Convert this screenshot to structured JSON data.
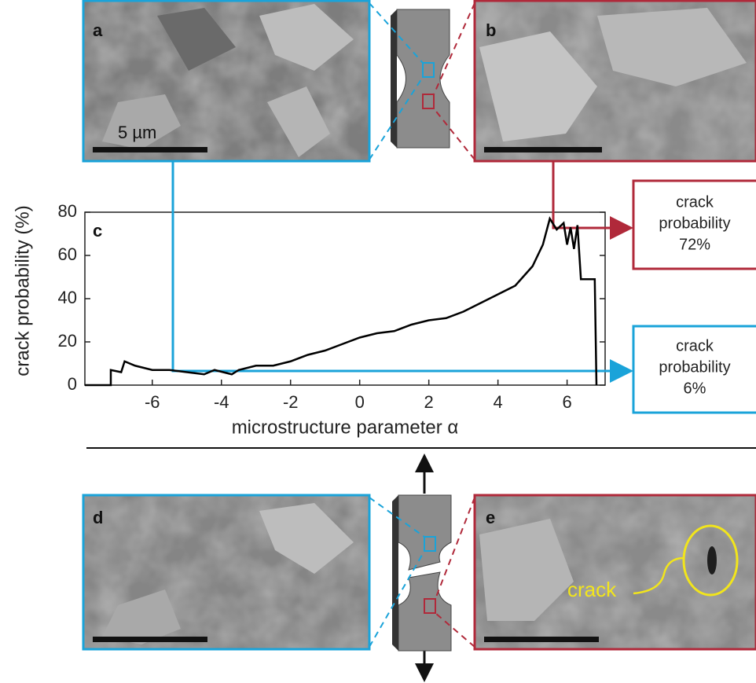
{
  "panel_labels": [
    "a",
    "b",
    "c",
    "d",
    "e"
  ],
  "scale_bar_label": "5 µm",
  "crack_label": "crack",
  "callouts": [
    {
      "lines": [
        "crack",
        "probability",
        "72%"
      ]
    },
    {
      "lines": [
        "crack",
        "probability",
        "6%"
      ]
    }
  ],
  "chart_data": {
    "type": "line",
    "xlabel": "microstructure parameter α",
    "ylabel": "crack probability (%)",
    "xlim": [
      -7.95,
      7.1
    ],
    "ylim": [
      0,
      80
    ],
    "xticks": [
      -6,
      -4,
      -2,
      0,
      2,
      4,
      6
    ],
    "yticks": [
      0,
      20,
      40,
      60,
      80
    ],
    "series": [
      {
        "color": "#000000",
        "x": [
          -7.95,
          -7.2,
          -7.2,
          -6.9,
          -6.8,
          -6.5,
          -6,
          -5.5,
          -5,
          -4.5,
          -4.2,
          -3.7,
          -3.5,
          -3,
          -2.5,
          -2,
          -1.5,
          -1,
          -0.5,
          0,
          0.5,
          1,
          1.5,
          2,
          2.5,
          3,
          3.5,
          4,
          4.5,
          5,
          5.3,
          5.5,
          5.7,
          5.9,
          6,
          6.1,
          6.2,
          6.3,
          6.4,
          6.8,
          6.85
        ],
        "values": [
          0,
          0,
          7,
          6,
          11,
          9,
          7,
          7,
          6,
          5,
          7,
          5,
          7,
          9,
          9,
          11,
          14,
          16,
          19,
          22,
          24,
          25,
          28,
          30,
          31,
          34,
          38,
          42,
          46,
          55,
          65,
          77,
          72,
          75,
          65,
          73,
          63,
          74,
          49,
          49,
          0
        ]
      }
    ]
  }
}
